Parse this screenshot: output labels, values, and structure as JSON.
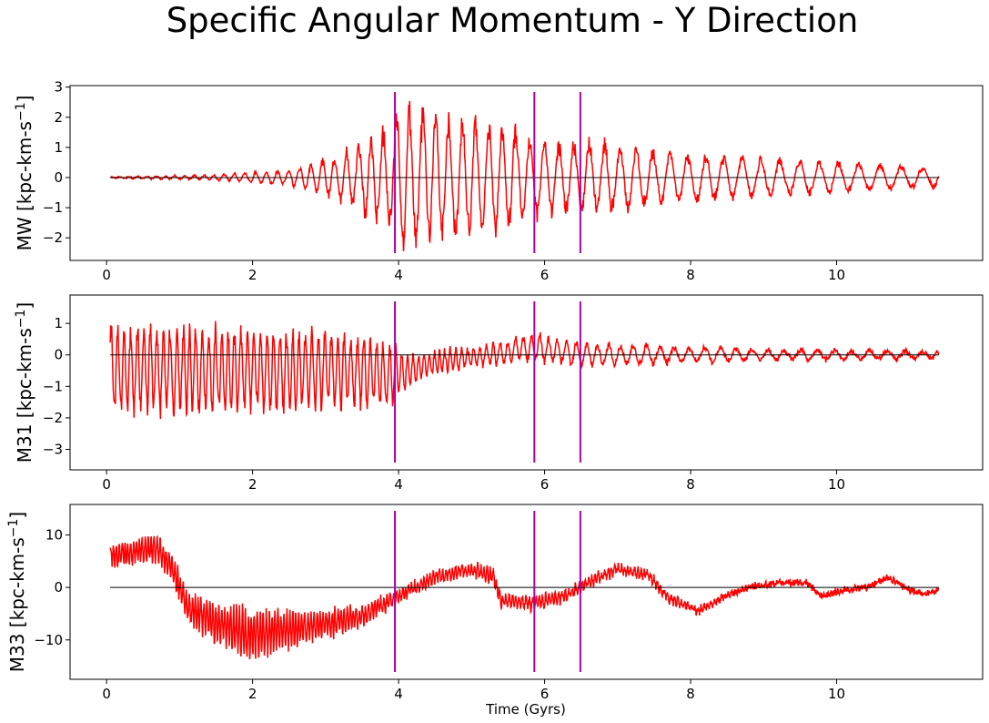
{
  "chart_data": {
    "type": "line",
    "title": "Specific Angular Momentum - Y Direction",
    "xlabel": "Time (Gyrs)",
    "xlim": [
      -0.5,
      12.0
    ],
    "x_ticks": [
      0,
      2,
      4,
      6,
      8,
      10
    ],
    "vertical_lines": [
      3.95,
      5.86,
      6.49
    ],
    "reference_line_y": 0,
    "colors": {
      "series": "#ff0000",
      "events": "#aa00aa",
      "zero": "#000000"
    },
    "panels": [
      {
        "name": "MW",
        "ylabel": "MW [kpc-km-s",
        "ylabel_sup": "−1",
        "ylabel_end": "]",
        "ylim": [
          -2.75,
          3.05
        ],
        "y_ticks": [
          -2,
          -1,
          0,
          1,
          2,
          3
        ],
        "y_tick_labels": [
          "−2",
          "−1",
          "0",
          "1",
          "2",
          "3"
        ],
        "x_range": [
          0.05,
          11.4
        ],
        "envelope": [
          [
            0.05,
            0.02
          ],
          [
            1.5,
            0.1
          ],
          [
            2.5,
            0.3
          ],
          [
            3.2,
            0.9
          ],
          [
            3.9,
            2.0
          ],
          [
            4.0,
            2.8
          ],
          [
            4.6,
            2.3
          ],
          [
            5.0,
            2.2
          ],
          [
            5.5,
            2.0
          ],
          [
            5.86,
            1.6
          ],
          [
            6.2,
            1.3
          ],
          [
            6.8,
            1.4
          ],
          [
            7.5,
            1.0
          ],
          [
            8.5,
            0.8
          ],
          [
            10.0,
            0.6
          ],
          [
            11.4,
            0.35
          ]
        ],
        "period": [
          [
            0.05,
            0.12
          ],
          [
            3.9,
            0.18
          ],
          [
            6.0,
            0.2
          ],
          [
            8.0,
            0.25
          ],
          [
            11.4,
            0.3
          ]
        ],
        "trend": [
          [
            0.05,
            0.0
          ],
          [
            11.4,
            0.0
          ]
        ],
        "noise": 0.15
      },
      {
        "name": "M31",
        "ylabel": "M31 [kpc-km-s",
        "ylabel_sup": "−1",
        "ylabel_end": "]",
        "ylim": [
          -3.65,
          1.9
        ],
        "y_ticks": [
          -3,
          -2,
          -1,
          0,
          1
        ],
        "y_tick_labels": [
          "−3",
          "−2",
          "−1",
          "0",
          "1"
        ],
        "x_range": [
          0.05,
          11.4
        ],
        "envelope": [
          [
            0.05,
            1.6
          ],
          [
            1.0,
            1.6
          ],
          [
            2.0,
            1.5
          ],
          [
            3.0,
            1.4
          ],
          [
            3.9,
            1.2
          ],
          [
            4.2,
            0.5
          ],
          [
            5.0,
            0.35
          ],
          [
            5.86,
            0.5
          ],
          [
            6.5,
            0.4
          ],
          [
            7.5,
            0.35
          ],
          [
            9.0,
            0.2
          ],
          [
            11.4,
            0.15
          ]
        ],
        "period": [
          [
            0.05,
            0.09
          ],
          [
            3.9,
            0.09
          ],
          [
            4.5,
            0.07
          ],
          [
            6.0,
            0.12
          ],
          [
            8.0,
            0.22
          ],
          [
            11.4,
            0.25
          ]
        ],
        "trend": [
          [
            0.05,
            -0.5
          ],
          [
            3.0,
            -0.5
          ],
          [
            3.95,
            -0.6
          ],
          [
            4.5,
            -0.25
          ],
          [
            5.5,
            0.1
          ],
          [
            5.86,
            0.25
          ],
          [
            6.5,
            0.0
          ],
          [
            11.4,
            0.0
          ]
        ],
        "noise": 0.45
      },
      {
        "name": "M33",
        "ylabel": "M33 [kpc-km-s",
        "ylabel_sup": "−1",
        "ylabel_end": "]",
        "ylim": [
          -17.5,
          15.8
        ],
        "y_ticks": [
          -10,
          0,
          10
        ],
        "y_tick_labels": [
          "−10",
          "0",
          "10"
        ],
        "x_range": [
          0.05,
          11.4
        ],
        "envelope": [
          [
            0.05,
            2.5
          ],
          [
            1.0,
            3.0
          ],
          [
            1.5,
            4.5
          ],
          [
            2.0,
            5.5
          ],
          [
            3.0,
            3.0
          ],
          [
            3.9,
            1.5
          ],
          [
            4.5,
            1.2
          ],
          [
            5.2,
            1.5
          ],
          [
            5.86,
            1.5
          ],
          [
            6.5,
            1.0
          ],
          [
            7.5,
            1.0
          ],
          [
            8.0,
            0.8
          ],
          [
            8.5,
            0.3
          ],
          [
            11.4,
            0.2
          ]
        ],
        "period": [
          [
            0.05,
            0.04
          ],
          [
            11.4,
            0.05
          ]
        ],
        "trend": [
          [
            0.05,
            6.0
          ],
          [
            0.7,
            7.5
          ],
          [
            0.9,
            3.5
          ],
          [
            1.1,
            -3.5
          ],
          [
            1.5,
            -7.0
          ],
          [
            2.0,
            -9.0
          ],
          [
            2.5,
            -8.0
          ],
          [
            3.0,
            -7.0
          ],
          [
            3.5,
            -5.5
          ],
          [
            3.95,
            -2.0
          ],
          [
            4.5,
            2.0
          ],
          [
            5.0,
            3.5
          ],
          [
            5.3,
            2.0
          ],
          [
            5.4,
            -2.5
          ],
          [
            5.86,
            -3.0
          ],
          [
            6.3,
            -1.5
          ],
          [
            6.6,
            1.0
          ],
          [
            7.0,
            3.5
          ],
          [
            7.4,
            2.5
          ],
          [
            7.7,
            -2.0
          ],
          [
            8.1,
            -4.5
          ],
          [
            8.5,
            -1.5
          ],
          [
            8.8,
            0.0
          ],
          [
            9.3,
            1.0
          ],
          [
            9.6,
            0.8
          ],
          [
            9.8,
            -1.8
          ],
          [
            10.1,
            -0.5
          ],
          [
            10.4,
            0.0
          ],
          [
            10.7,
            1.8
          ],
          [
            11.0,
            -0.5
          ],
          [
            11.2,
            -1.2
          ],
          [
            11.4,
            -0.5
          ]
        ],
        "noise": 1.2
      }
    ]
  }
}
